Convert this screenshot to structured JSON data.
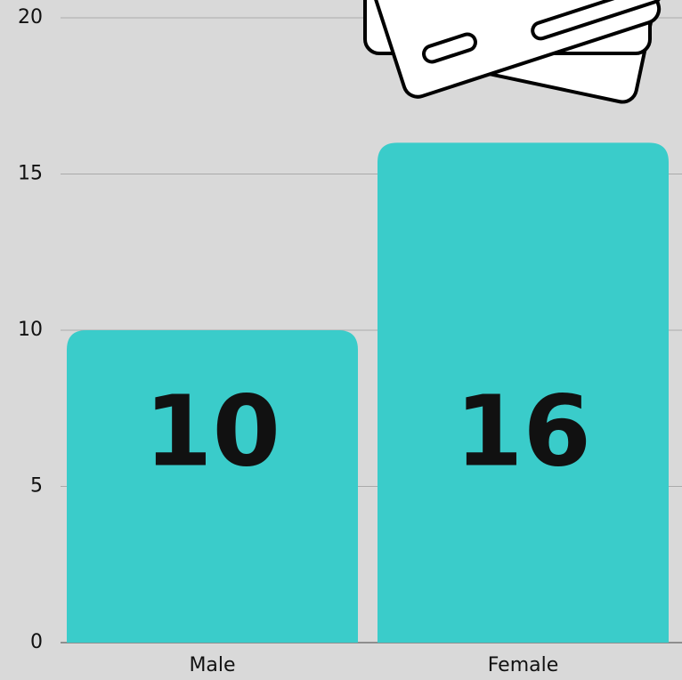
{
  "chart_data": {
    "type": "bar",
    "categories": [
      "Male",
      "Female"
    ],
    "values": [
      10,
      16
    ],
    "color": "#3accca",
    "ylim": [
      0,
      20
    ],
    "yticks": [
      0,
      5,
      10,
      15,
      20
    ],
    "grid": true
  }
}
